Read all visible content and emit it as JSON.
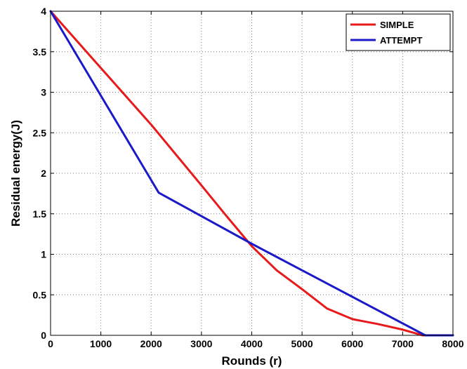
{
  "chart_data": {
    "type": "line",
    "title": "",
    "xlabel": "Rounds (r)",
    "ylabel": "Residual energy(J)",
    "xlim": [
      0,
      8000
    ],
    "ylim": [
      0,
      4
    ],
    "xticks": [
      0,
      1000,
      2000,
      3000,
      4000,
      5000,
      6000,
      7000,
      8000
    ],
    "xtick_labels": [
      "0",
      "1000",
      "2000",
      "3000",
      "4000",
      "5000",
      "6000",
      "7000",
      "8000"
    ],
    "yticks": [
      0,
      0.5,
      1,
      1.5,
      2,
      2.5,
      3,
      3.5,
      4
    ],
    "ytick_labels": [
      "0",
      "0.5",
      "1",
      "1.5",
      "2",
      "2.5",
      "3",
      "3.5",
      "4"
    ],
    "grid": true,
    "grid_style": "dotted",
    "legend_position": "top-right",
    "series": [
      {
        "name": "SIMPLE",
        "color": "#e8191b",
        "x": [
          0,
          1000,
          2000,
          3000,
          3500,
          4000,
          4500,
          5000,
          5500,
          6000,
          6500,
          7000,
          7400,
          8000
        ],
        "y": [
          4,
          3.3,
          2.6,
          1.85,
          1.47,
          1.1,
          0.8,
          0.57,
          0.33,
          0.2,
          0.14,
          0.07,
          0,
          0
        ]
      },
      {
        "name": "ATTEMPT",
        "color": "#1a1ac8",
        "x": [
          0,
          2150,
          4000,
          7450,
          8000
        ],
        "y": [
          4,
          1.76,
          1.13,
          0,
          0
        ]
      }
    ]
  }
}
